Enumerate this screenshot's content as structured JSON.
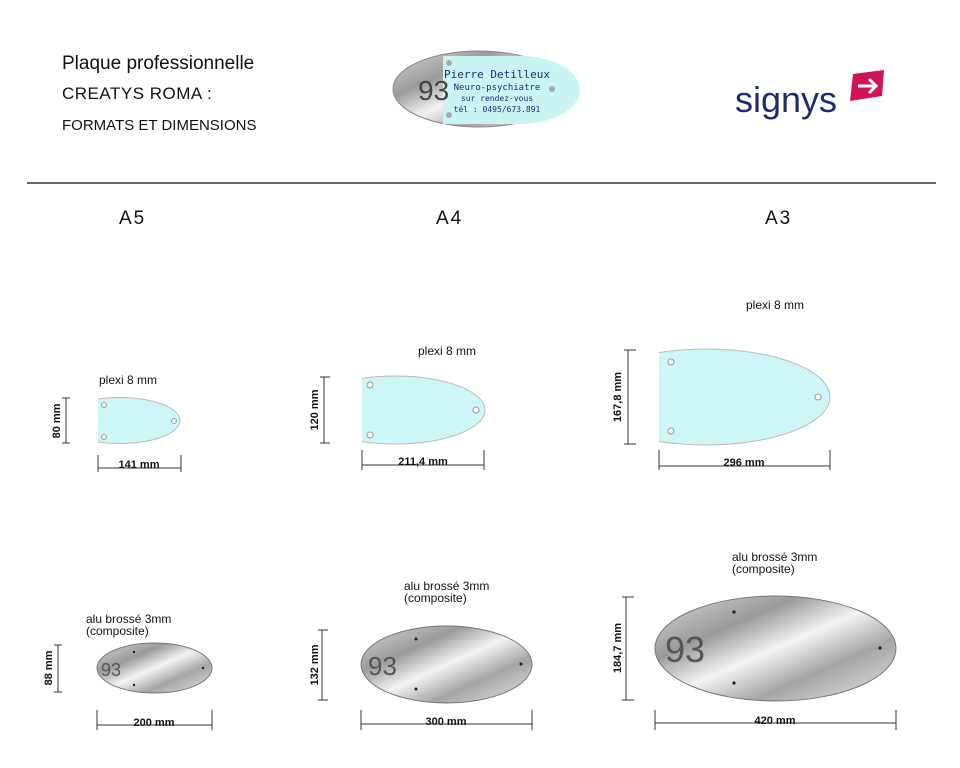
{
  "header": {
    "line1": "Plaque professionnelle",
    "line2": "CREATYS ROMA :",
    "line3": "FORMATS ET DIMENSIONS"
  },
  "sample_plaque": {
    "number": "93",
    "name": "Pierre Detilleux",
    "profession": "Neuro-psychiatre",
    "appointment": "sur rendez-vous",
    "phone": "tél : 0495/673.891"
  },
  "logo": {
    "text": "signys",
    "color_primary": "#1d2d6b",
    "color_accent": "#d0145a"
  },
  "formats": [
    {
      "label": "A5",
      "plexi": {
        "material": "plexi 8 mm",
        "height": "80 mm",
        "width": "141 mm"
      },
      "alu": {
        "material": "alu brossé 3mm",
        "note": "(composite)",
        "height": "88 mm",
        "width": "200 mm",
        "number": "93"
      }
    },
    {
      "label": "A4",
      "plexi": {
        "material": "plexi 8 mm",
        "height": "120 mm",
        "width": "211,4 mm"
      },
      "alu": {
        "material": "alu brossé 3mm",
        "note": "(composite)",
        "height": "132 mm",
        "width": "300 mm",
        "number": "93"
      }
    },
    {
      "label": "A3",
      "plexi": {
        "material": "plexi 8 mm",
        "height": "167,8 mm",
        "width": "296 mm"
      },
      "alu": {
        "material": "alu brossé 3mm",
        "note": "(composite)",
        "height": "184,7 mm",
        "width": "420 mm",
        "number": "93"
      }
    }
  ]
}
